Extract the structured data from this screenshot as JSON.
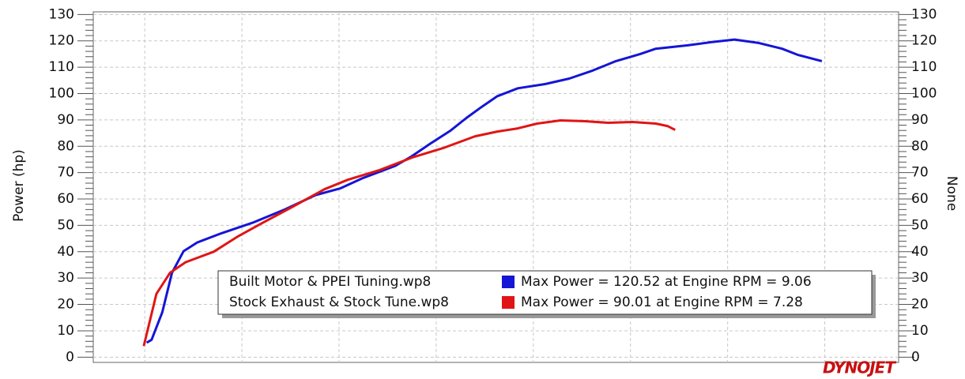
{
  "chart_data": {
    "type": "line",
    "y_label": "Power (hp)",
    "y2_label": "None",
    "logo": "DYNOJET",
    "xlim": [
      2.47,
      10.76
    ],
    "xticks": [
      3,
      4,
      5,
      6,
      7,
      8,
      9,
      10
    ],
    "ylim": [
      -2,
      131
    ],
    "yticks": [
      0,
      10,
      20,
      30,
      40,
      50,
      60,
      70,
      80,
      90,
      100,
      110,
      120,
      130
    ],
    "y2lim": [
      -2,
      131
    ],
    "y2ticks": [
      0,
      10,
      20,
      30,
      40,
      50,
      60,
      70,
      80,
      90,
      100,
      110,
      120,
      130
    ],
    "grid": true,
    "series": [
      {
        "name": "Built Motor & PPEI Tuning.wp8",
        "summary": "Max Power = 120.52 at Engine RPM = 9.06",
        "color": "#1515d6",
        "x": [
          3.02,
          3.07,
          3.18,
          3.28,
          3.4,
          3.54,
          3.79,
          4.11,
          4.44,
          4.76,
          5.01,
          5.25,
          5.58,
          5.74,
          5.94,
          6.15,
          6.31,
          6.47,
          6.63,
          6.84,
          7.12,
          7.37,
          7.61,
          7.85,
          8.1,
          8.26,
          8.59,
          8.83,
          9.07,
          9.32,
          9.56,
          9.72,
          9.97
        ],
        "values": [
          5.5,
          6.6,
          17,
          32,
          40.2,
          43.5,
          47,
          51,
          56,
          61.5,
          64,
          68,
          72.6,
          76,
          81,
          86,
          90.7,
          95,
          99,
          102,
          103.6,
          105.7,
          108.7,
          112.3,
          115,
          117,
          118.3,
          119.5,
          120.5,
          119.2,
          117,
          114.7,
          112.3
        ]
      },
      {
        "name": "Stock Exhaust & Stock Tune.wp8",
        "summary": "Max Power = 90.01 at Engine RPM = 7.28",
        "color": "#e01515",
        "x": [
          2.99,
          3.12,
          3.26,
          3.42,
          3.71,
          3.95,
          4.2,
          4.52,
          4.85,
          5.09,
          5.42,
          5.75,
          6.07,
          6.4,
          6.63,
          6.84,
          7.04,
          7.28,
          7.53,
          7.77,
          8.02,
          8.26,
          8.38,
          8.46
        ],
        "values": [
          4.2,
          24,
          32,
          36,
          40,
          45.6,
          50.7,
          57,
          63.7,
          67.3,
          71,
          75.7,
          79.3,
          83.8,
          85.6,
          86.8,
          88.6,
          89.8,
          89.5,
          88.9,
          89.2,
          88.6,
          87.7,
          86.2
        ]
      }
    ]
  }
}
